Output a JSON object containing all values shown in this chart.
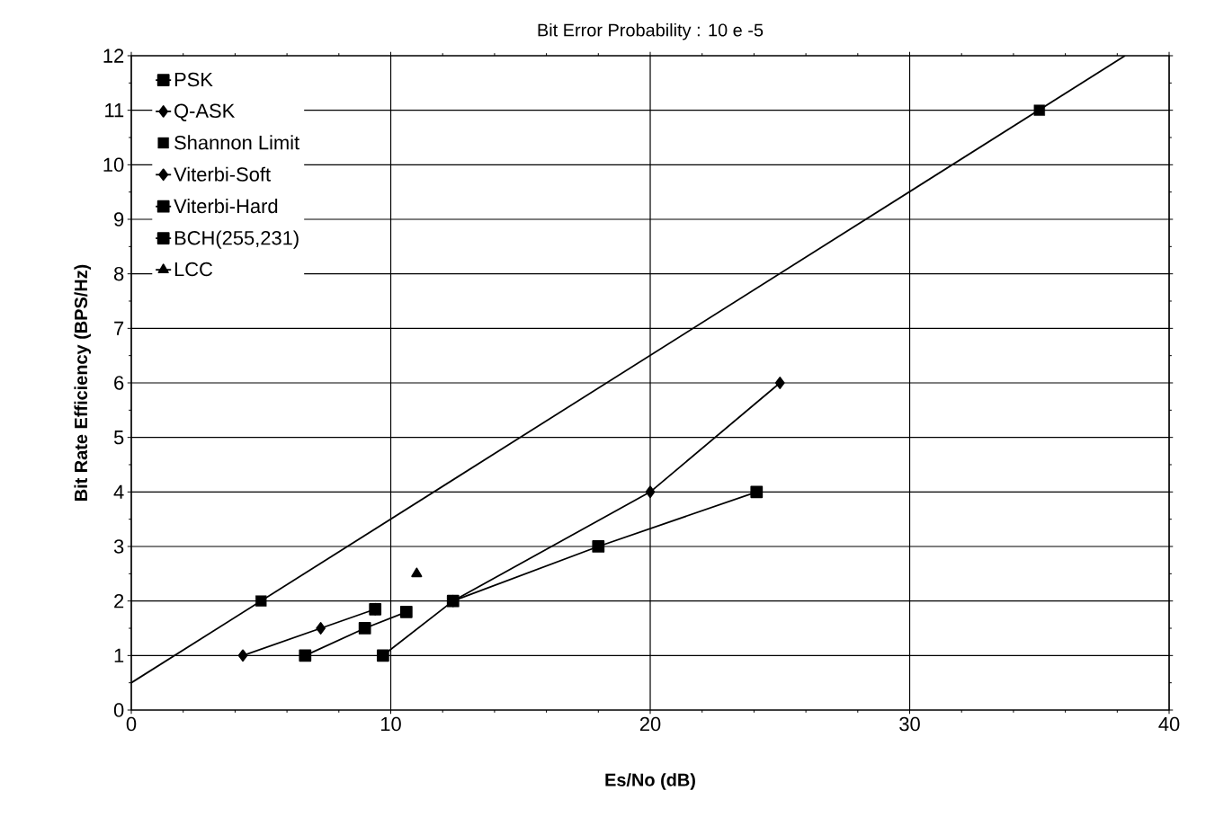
{
  "chart_data": {
    "type": "line",
    "title": "Bit Error Probability : 10 e -5",
    "xlabel": "Es/No (dB)",
    "ylabel": "Bit   Rate   Efficiency   (BPS/Hz)",
    "xlim": [
      0,
      40
    ],
    "ylim": [
      0,
      12
    ],
    "xticks": [
      0,
      10,
      20,
      30,
      40
    ],
    "yticks": [
      0,
      1,
      2,
      3,
      4,
      5,
      6,
      7,
      8,
      9,
      10,
      11,
      12
    ],
    "grid": true,
    "legend": "top left",
    "series": [
      {
        "name": "PSK",
        "type": "line",
        "marker": "square",
        "color": "#000000",
        "x": [
          9.7,
          12.4,
          18,
          24.1
        ],
        "values": [
          1,
          2,
          3,
          4
        ]
      },
      {
        "name": "Q-ASK",
        "type": "line",
        "marker": "diamond",
        "color": "#000000",
        "x": [
          12.4,
          20,
          25
        ],
        "values": [
          2,
          4,
          6
        ]
      },
      {
        "name": "Shannon Limit",
        "type": "scatter",
        "marker": "square",
        "color": "#000000",
        "x": [
          5,
          35
        ],
        "values": [
          2,
          11
        ]
      },
      {
        "name": "Viterbi-Soft",
        "type": "line",
        "marker": "diamond",
        "color": "#000000",
        "x": [
          4.3,
          7.3,
          9.4
        ],
        "values": [
          1,
          1.5,
          1.85
        ]
      },
      {
        "name": "Viterbi-Hard",
        "type": "line",
        "marker": "square",
        "color": "#000000",
        "x": [
          6.7,
          9.0,
          10.6
        ],
        "values": [
          1,
          1.5,
          1.8
        ]
      },
      {
        "name": "BCH(255,231)",
        "type": "line",
        "marker": "square",
        "color": "#000000",
        "x": [
          9.4
        ],
        "values": [
          1.85
        ]
      },
      {
        "name": "LCC",
        "type": "line",
        "marker": "triangle",
        "color": "#000000",
        "x": [
          11
        ],
        "values": [
          2.5
        ]
      },
      {
        "marker": "none",
        "color": "#000000",
        "x": [
          0,
          38.3
        ],
        "values": [
          0.5,
          12
        ]
      }
    ]
  }
}
